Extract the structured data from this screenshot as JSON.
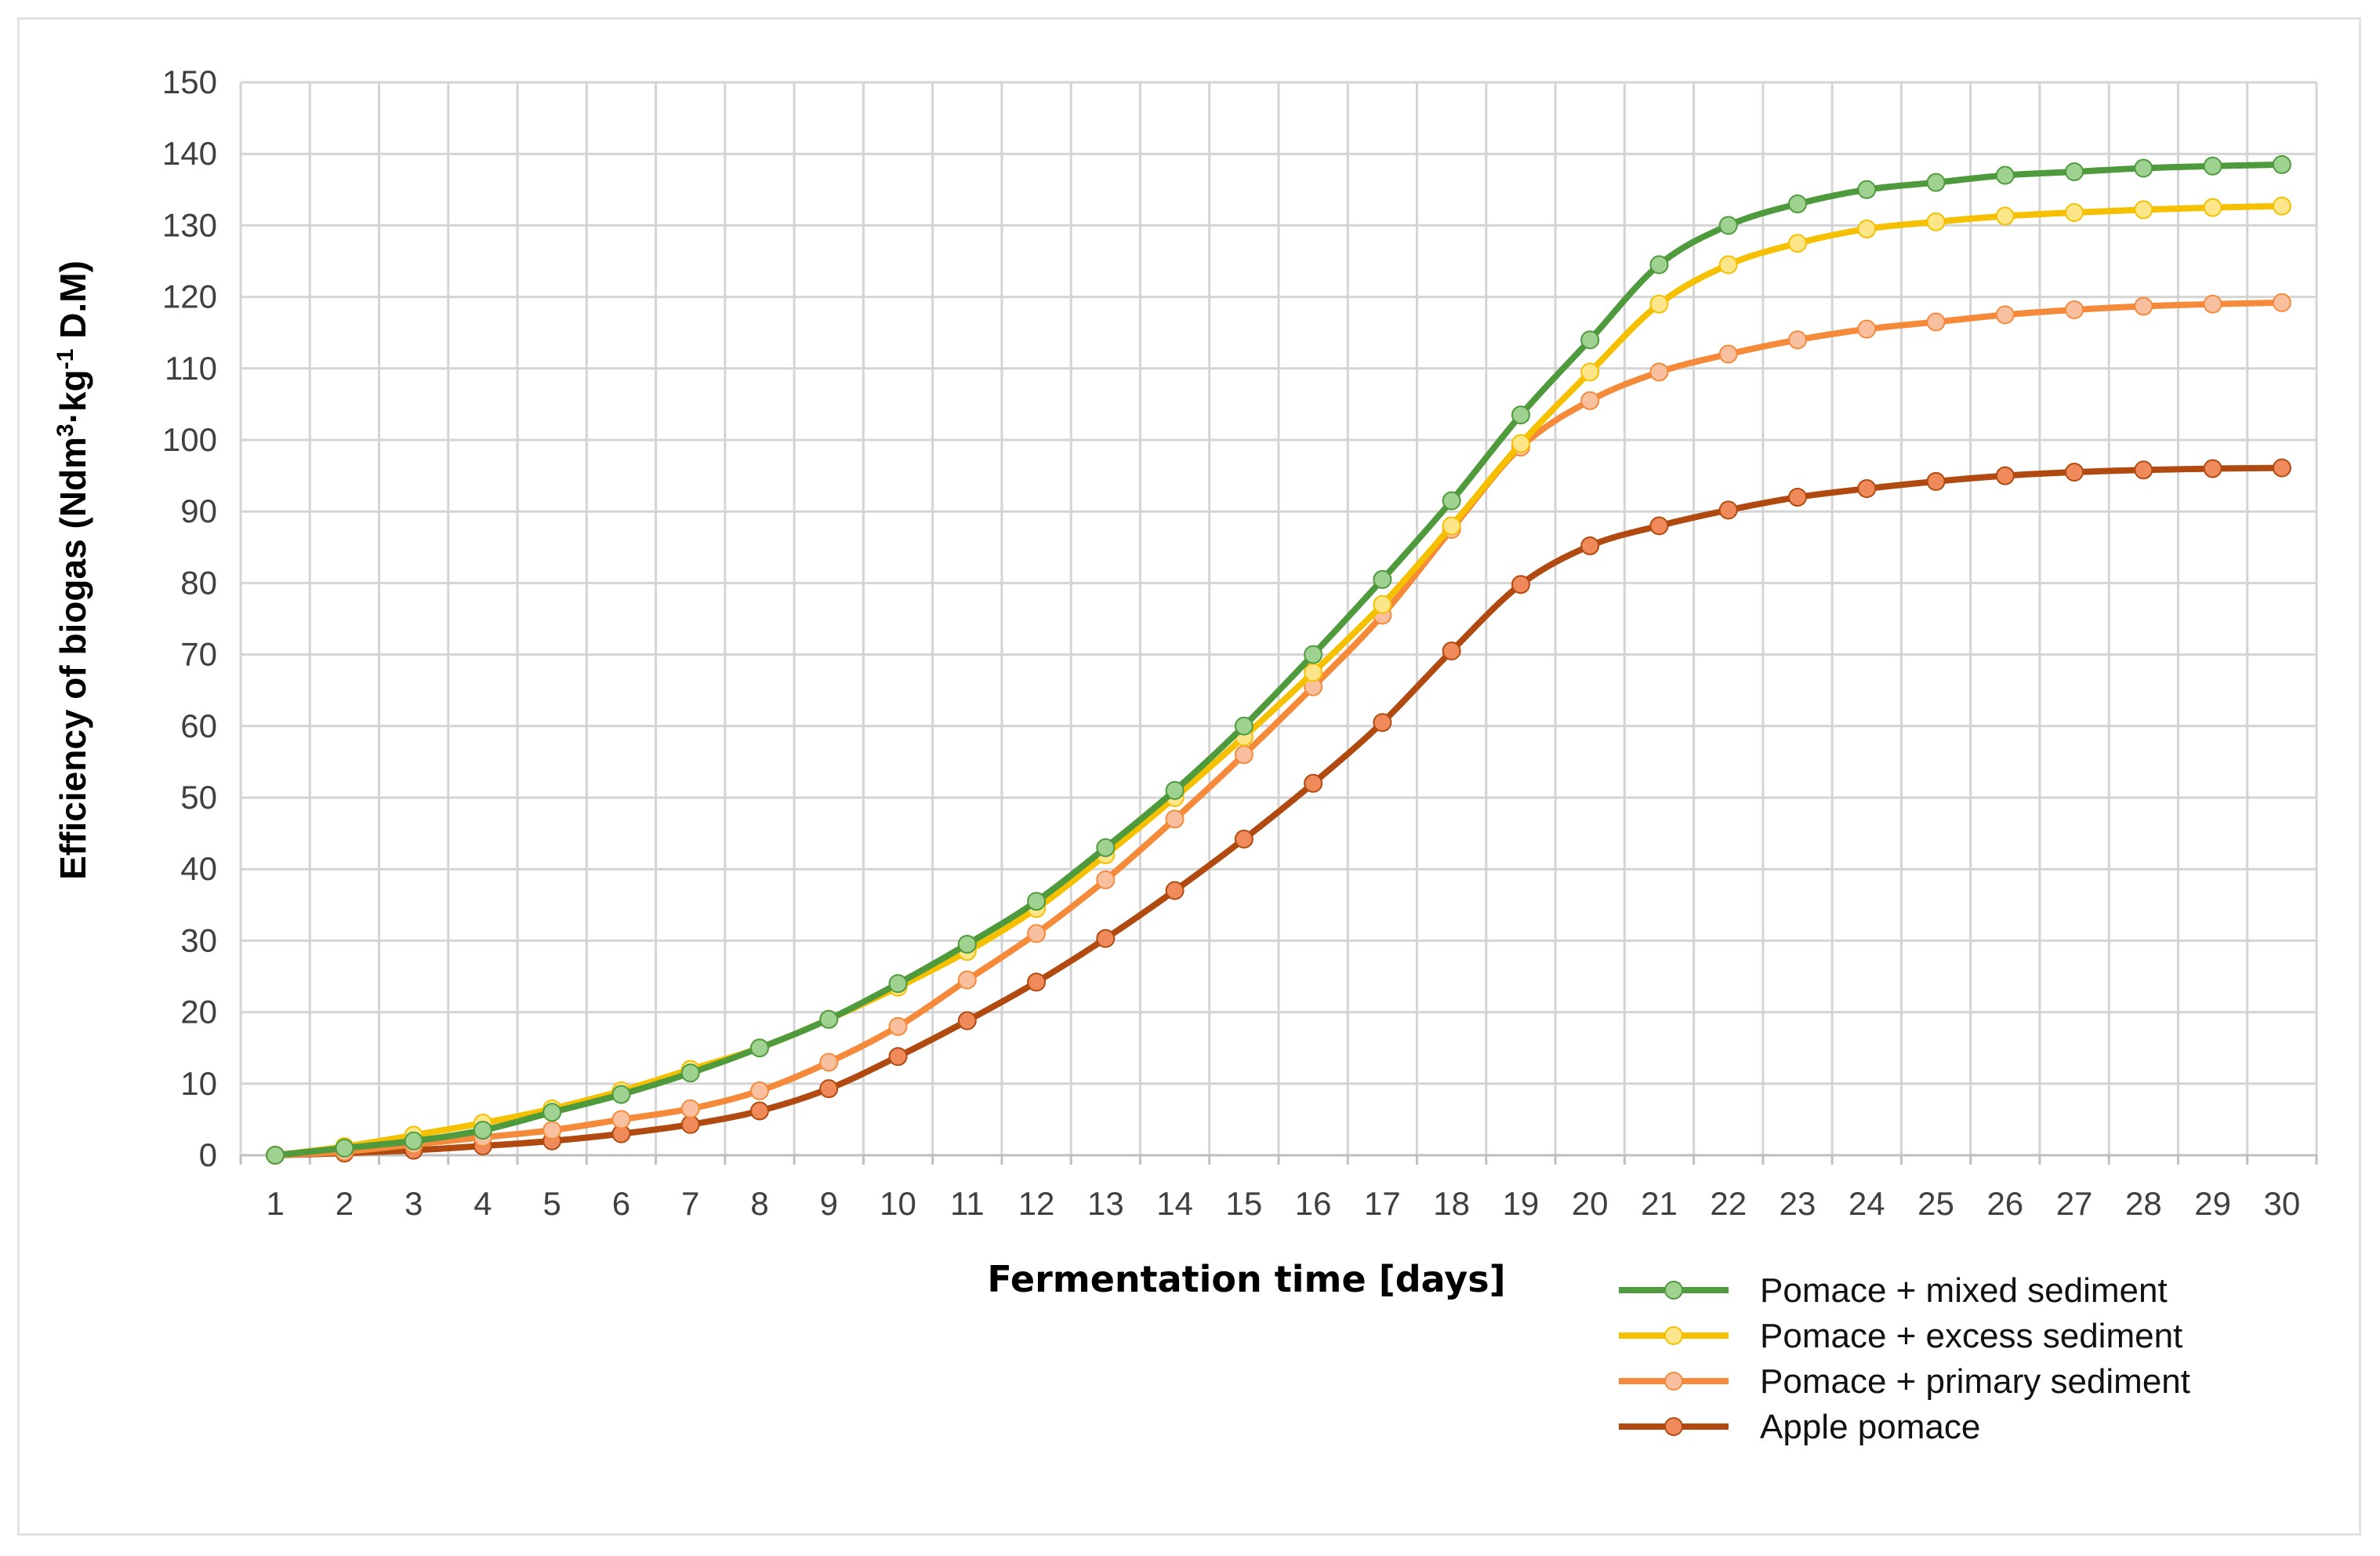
{
  "chart_data": {
    "type": "line",
    "xlabel": "Fermentation time [days]",
    "ylabel": {
      "prefix": "Efficiency of biogas (Ndm",
      "sup1": "3",
      "mid": "·kg",
      "sup2": "-1",
      "suffix": " D.M)"
    },
    "x": [
      1,
      2,
      3,
      4,
      5,
      6,
      7,
      8,
      9,
      10,
      11,
      12,
      13,
      14,
      15,
      16,
      17,
      18,
      19,
      20,
      21,
      22,
      23,
      24,
      25,
      26,
      27,
      28,
      29,
      30
    ],
    "ylim": [
      0,
      150
    ],
    "yticks": [
      0,
      10,
      20,
      30,
      40,
      50,
      60,
      70,
      80,
      90,
      100,
      110,
      120,
      130,
      140,
      150
    ],
    "grid": true,
    "legend_position": "bottom-right",
    "series": [
      {
        "name": "Pomace + mixed sediment",
        "color": "#4e9a3c",
        "marker_color": "#9fd191",
        "values": [
          0,
          1,
          2,
          3.5,
          6,
          8.5,
          11.5,
          15,
          19,
          24,
          29.5,
          35.5,
          43,
          51,
          60,
          70,
          80.5,
          91.5,
          103.5,
          114,
          124.5,
          130,
          133,
          135,
          136,
          137,
          137.5,
          138,
          138.3,
          138.5
        ]
      },
      {
        "name": "Pomace + excess sediment",
        "color": "#f5c000",
        "marker_color": "#fde68a",
        "values": [
          0,
          1.2,
          2.8,
          4.5,
          6.5,
          9,
          12,
          15,
          19,
          23.5,
          28.5,
          34.5,
          42,
          50,
          58.5,
          67.5,
          77,
          88,
          99.5,
          109.5,
          119,
          124.5,
          127.5,
          129.5,
          130.5,
          131.3,
          131.8,
          132.2,
          132.5,
          132.7
        ]
      },
      {
        "name": "Pomace + primary sediment",
        "color": "#f58a3a",
        "marker_color": "#f9c0a0",
        "values": [
          0,
          0.5,
          1.5,
          2.5,
          3.5,
          5,
          6.5,
          9,
          13,
          18,
          24.5,
          31,
          38.5,
          47,
          56,
          65.5,
          75.5,
          87.5,
          99,
          105.5,
          109.5,
          112,
          114,
          115.5,
          116.5,
          117.5,
          118.2,
          118.7,
          119,
          119.2
        ]
      },
      {
        "name": "Apple pomace",
        "color": "#b04a10",
        "marker_color": "#f08a5a",
        "values": [
          0,
          0.3,
          0.7,
          1.3,
          2,
          3,
          4.3,
          6.2,
          9.3,
          13.8,
          18.8,
          24.2,
          30.3,
          37,
          44.2,
          52,
          60.5,
          70.5,
          79.8,
          85.2,
          88,
          90.2,
          92,
          93.2,
          94.2,
          95,
          95.5,
          95.8,
          96,
          96.1
        ]
      }
    ]
  }
}
